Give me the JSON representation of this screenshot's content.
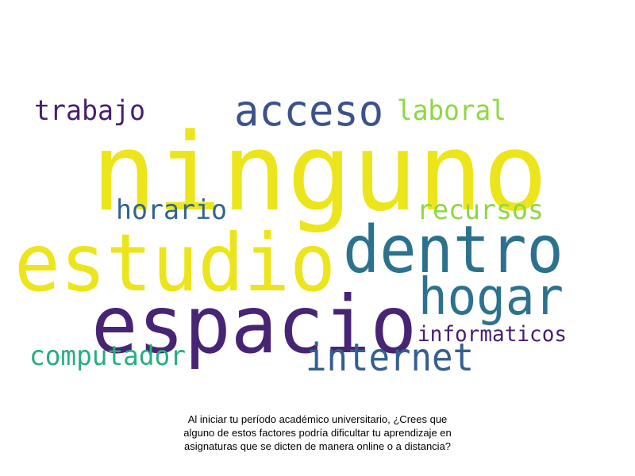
{
  "words": [
    {
      "text": "ninguno",
      "color": "#ece51b",
      "weight": 1.0
    },
    {
      "text": "estudio",
      "color": "#ece51b",
      "weight": 0.75
    },
    {
      "text": "espacio",
      "color": "#482475",
      "weight": 0.75
    },
    {
      "text": "dentro",
      "color": "#2c728e",
      "weight": 0.62
    },
    {
      "text": "hogar",
      "color": "#2c728e",
      "weight": 0.5
    },
    {
      "text": "acceso",
      "color": "#3b528b",
      "weight": 0.38
    },
    {
      "text": "internet",
      "color": "#355f8d",
      "weight": 0.38
    },
    {
      "text": "trabajo",
      "color": "#482071",
      "weight": 0.25
    },
    {
      "text": "laboral",
      "color": "#8fd744",
      "weight": 0.25
    },
    {
      "text": "horario",
      "color": "#33638d",
      "weight": 0.25
    },
    {
      "text": "recursos",
      "color": "#8fd744",
      "weight": 0.25
    },
    {
      "text": "computador",
      "color": "#28ae80",
      "weight": 0.25
    },
    {
      "text": "informaticos",
      "color": "#481f70",
      "weight": 0.2
    }
  ],
  "caption": {
    "line1": "Al iniciar tu período académico universitario, ¿Crees que",
    "line2": "alguno de estos factores podría dificultar tu aprendizaje en",
    "line3": "asignaturas que se dicten de manera online o a distancia?"
  }
}
